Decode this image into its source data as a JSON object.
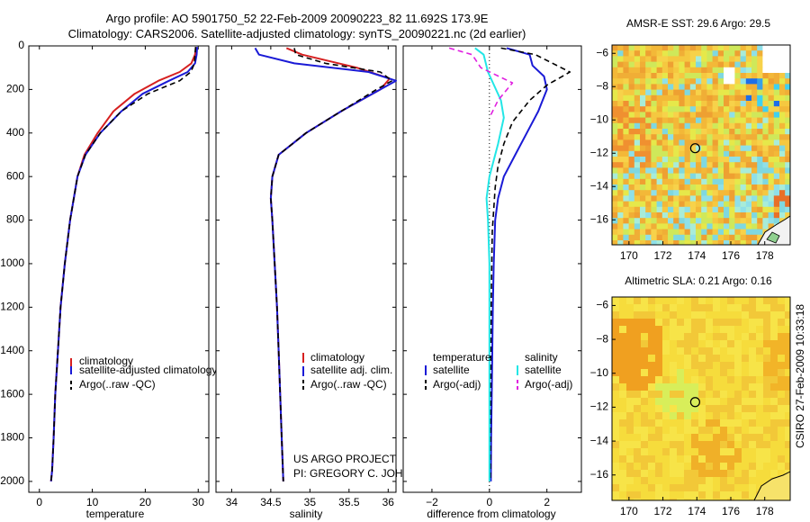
{
  "header": {
    "title_line1": "Argo profile: AO 5901750_52 22-Feb-2009 20090223_82 11.692S 173.9E",
    "title_line2": "Climatology: CARS2006. Satellite-adjusted climatology: synTS_20090221.nc (2d earlier)"
  },
  "credits": {
    "project": "US ARGO PROJECT",
    "pi": "PI: GREGORY C. JOHNSON",
    "side_stamp": "CSIRO 27-Feb-2009 10:33:18"
  },
  "colors": {
    "climatology": "#d62020",
    "satellite": "#1a1ad6",
    "argo": "#000000",
    "cyan": "#22e6e6",
    "magenta": "#e020e0",
    "sst_bg": "#f5c840",
    "sla_bg": "#f6dc3c"
  },
  "chart_data": [
    {
      "id": "temperature",
      "type": "line",
      "xlabel": "temperature",
      "xlim": [
        -2,
        32
      ],
      "xticks": [
        0,
        10,
        20,
        30
      ],
      "ylim": [
        2050,
        0
      ],
      "yticks": [
        0,
        200,
        400,
        600,
        800,
        1000,
        1200,
        1400,
        1600,
        1800,
        2000
      ],
      "y_reversed": true,
      "series": [
        {
          "name": "climatology",
          "color": "#d62020",
          "dash": "",
          "width": 2,
          "x": [
            29.6,
            29.4,
            28.7,
            26.5,
            22.5,
            18,
            14,
            11,
            8.5,
            7.2,
            5.8,
            4.8,
            4.0,
            3.5,
            3.0,
            2.7,
            2.4,
            2.2
          ],
          "y": [
            5,
            40,
            80,
            120,
            160,
            220,
            300,
            400,
            500,
            600,
            800,
            1000,
            1200,
            1400,
            1600,
            1800,
            1950,
            2000
          ]
        },
        {
          "name": "satellite-adjusted climatology",
          "color": "#1a1ad6",
          "dash": "",
          "width": 2,
          "x": [
            29.8,
            29.7,
            29.4,
            28,
            24.5,
            19.5,
            15.5,
            11.5,
            8.7,
            7.2,
            5.8,
            4.8,
            4.0,
            3.5,
            3.0,
            2.7,
            2.4,
            2.2
          ],
          "y": [
            5,
            40,
            80,
            120,
            160,
            220,
            300,
            400,
            500,
            600,
            800,
            1000,
            1200,
            1400,
            1600,
            1800,
            1950,
            2000
          ]
        },
        {
          "name": "Argo(..raw -QC)",
          "color": "#000000",
          "dash": "6 4",
          "width": 1.6,
          "x": [
            29.5,
            29.4,
            29.3,
            28.6,
            26.5,
            20.5,
            15.5,
            11.5,
            8.7,
            7.2,
            5.8,
            4.8,
            4.0,
            3.5,
            3.0,
            2.7,
            2.4,
            2.2
          ],
          "y": [
            5,
            40,
            80,
            120,
            160,
            220,
            300,
            400,
            500,
            600,
            800,
            1000,
            1200,
            1400,
            1600,
            1800,
            1950,
            2000
          ]
        }
      ],
      "legend": [
        "climatology",
        "satellite-adjusted climatology",
        "Argo(..raw -QC)"
      ],
      "legend_position": "lower-right"
    },
    {
      "id": "salinity",
      "type": "line",
      "xlabel": "salinity",
      "xlim": [
        33.8,
        36.1
      ],
      "xticks": [
        34,
        34.5,
        35,
        35.5,
        36
      ],
      "xtick_labels": [
        "34",
        "34.5",
        "35",
        "35.5",
        "36"
      ],
      "ylim": [
        2050,
        0
      ],
      "y_reversed": true,
      "series": [
        {
          "name": "climatology",
          "color": "#d62020",
          "dash": "",
          "width": 2,
          "x": [
            34.7,
            34.9,
            35.6,
            36.02,
            35.9,
            35.4,
            34.95,
            34.6,
            34.52,
            34.5,
            34.52,
            34.55,
            34.58,
            34.6,
            34.62,
            34.64,
            34.66
          ],
          "y": [
            10,
            40,
            100,
            150,
            200,
            300,
            400,
            500,
            600,
            700,
            800,
            1000,
            1200,
            1400,
            1600,
            1800,
            2000
          ]
        },
        {
          "name": "satellite adj. clim.",
          "color": "#1a1ad6",
          "dash": "",
          "width": 2,
          "x": [
            34.3,
            34.35,
            34.8,
            35.75,
            36.1,
            35.9,
            35.4,
            34.95,
            34.6,
            34.52,
            34.5,
            34.52,
            34.55,
            34.58,
            34.6,
            34.62,
            34.64,
            34.66
          ],
          "y": [
            10,
            40,
            80,
            120,
            160,
            200,
            300,
            400,
            500,
            600,
            700,
            800,
            1000,
            1200,
            1400,
            1600,
            1800,
            2000
          ]
        },
        {
          "name": "Argo(..raw -QC)",
          "color": "#000000",
          "dash": "6 4",
          "width": 1.6,
          "x": [
            34.8,
            34.82,
            35.2,
            35.9,
            36.05,
            35.85,
            35.4,
            34.95,
            34.6,
            34.52,
            34.5,
            34.52,
            34.55,
            34.58,
            34.6,
            34.62,
            34.64,
            34.66
          ],
          "y": [
            10,
            40,
            80,
            120,
            160,
            200,
            300,
            400,
            500,
            600,
            700,
            800,
            1000,
            1200,
            1400,
            1600,
            1800,
            2000
          ]
        }
      ],
      "legend": [
        "climatology",
        "satellite adj. clim.",
        "Argo(..raw -QC)"
      ],
      "legend_position": "lower-right"
    },
    {
      "id": "difference",
      "type": "line",
      "xlabel": "difference from climatology",
      "xlim": [
        -3,
        3.2
      ],
      "xticks": [
        -2,
        0,
        2
      ],
      "ylim": [
        2050,
        0
      ],
      "y_reversed": true,
      "zero_line": true,
      "series": [
        {
          "name": "temperature satellite",
          "group": "temperature",
          "color": "#1a1ad6",
          "dash": "",
          "width": 2,
          "x": [
            0.6,
            1.4,
            1.5,
            1.9,
            2.0,
            1.7,
            1.3,
            0.9,
            0.5,
            0.3,
            0.2,
            0.15,
            0.12,
            0.1,
            0.08,
            0.06,
            0.05
          ],
          "y": [
            10,
            40,
            90,
            140,
            200,
            300,
            400,
            500,
            600,
            700,
            800,
            1000,
            1200,
            1400,
            1600,
            1800,
            2000
          ]
        },
        {
          "name": "temperature Argo(-adj)",
          "group": "temperature",
          "color": "#000000",
          "dash": "6 4",
          "width": 1.6,
          "x": [
            0.4,
            1.6,
            2.8,
            2.0,
            1.4,
            0.8,
            0.5,
            0.3,
            0.2,
            0.15,
            0.1,
            0.08,
            0.06,
            0.05,
            0.04,
            0.03
          ],
          "y": [
            10,
            40,
            120,
            180,
            250,
            350,
            450,
            550,
            650,
            750,
            850,
            1000,
            1200,
            1400,
            1700,
            2000
          ]
        },
        {
          "name": "salinity satellite",
          "group": "salinity",
          "color": "#22e6e6",
          "dash": "",
          "width": 2,
          "x": [
            -0.5,
            -0.2,
            -0.05,
            0.4,
            0.5,
            0.3,
            0.0,
            -0.1,
            -0.05,
            0.0,
            0.0,
            0.0,
            0.0
          ],
          "y": [
            10,
            40,
            120,
            250,
            330,
            450,
            600,
            700,
            800,
            1000,
            1400,
            1800,
            2000
          ]
        },
        {
          "name": "salinity Argo(-adj)",
          "group": "salinity",
          "color": "#e020e0",
          "dash": "6 4",
          "width": 1.6,
          "x": [
            -1.4,
            -0.6,
            -0.3,
            0.8,
            0.3,
            0.0
          ],
          "y": [
            10,
            40,
            100,
            170,
            250,
            330
          ]
        }
      ],
      "legend_headers": [
        "temperature",
        "salinity"
      ],
      "legend": [
        "satellite",
        "Argo(-adj)"
      ],
      "legend_position": "lower-center"
    },
    {
      "id": "sst_map",
      "type": "heatmap",
      "title": "AMSR-E SST: 29.6 Argo: 29.5",
      "xlim": [
        169,
        179.5
      ],
      "ylim": [
        -17.5,
        -5.5
      ],
      "xticks": [
        170,
        172,
        174,
        176,
        178
      ],
      "yticks": [
        -6,
        -8,
        -10,
        -12,
        -14,
        -16
      ],
      "marker": {
        "lon": 173.9,
        "lat": -11.7
      }
    },
    {
      "id": "sla_map",
      "type": "heatmap",
      "title": "Altimetric SLA: 0.21 Argo: 0.16",
      "xlim": [
        169,
        179.5
      ],
      "ylim": [
        -17.5,
        -5.5
      ],
      "xticks": [
        170,
        172,
        174,
        176,
        178
      ],
      "yticks": [
        -6,
        -8,
        -10,
        -12,
        -14,
        -16
      ],
      "marker": {
        "lon": 173.9,
        "lat": -11.7
      }
    }
  ]
}
